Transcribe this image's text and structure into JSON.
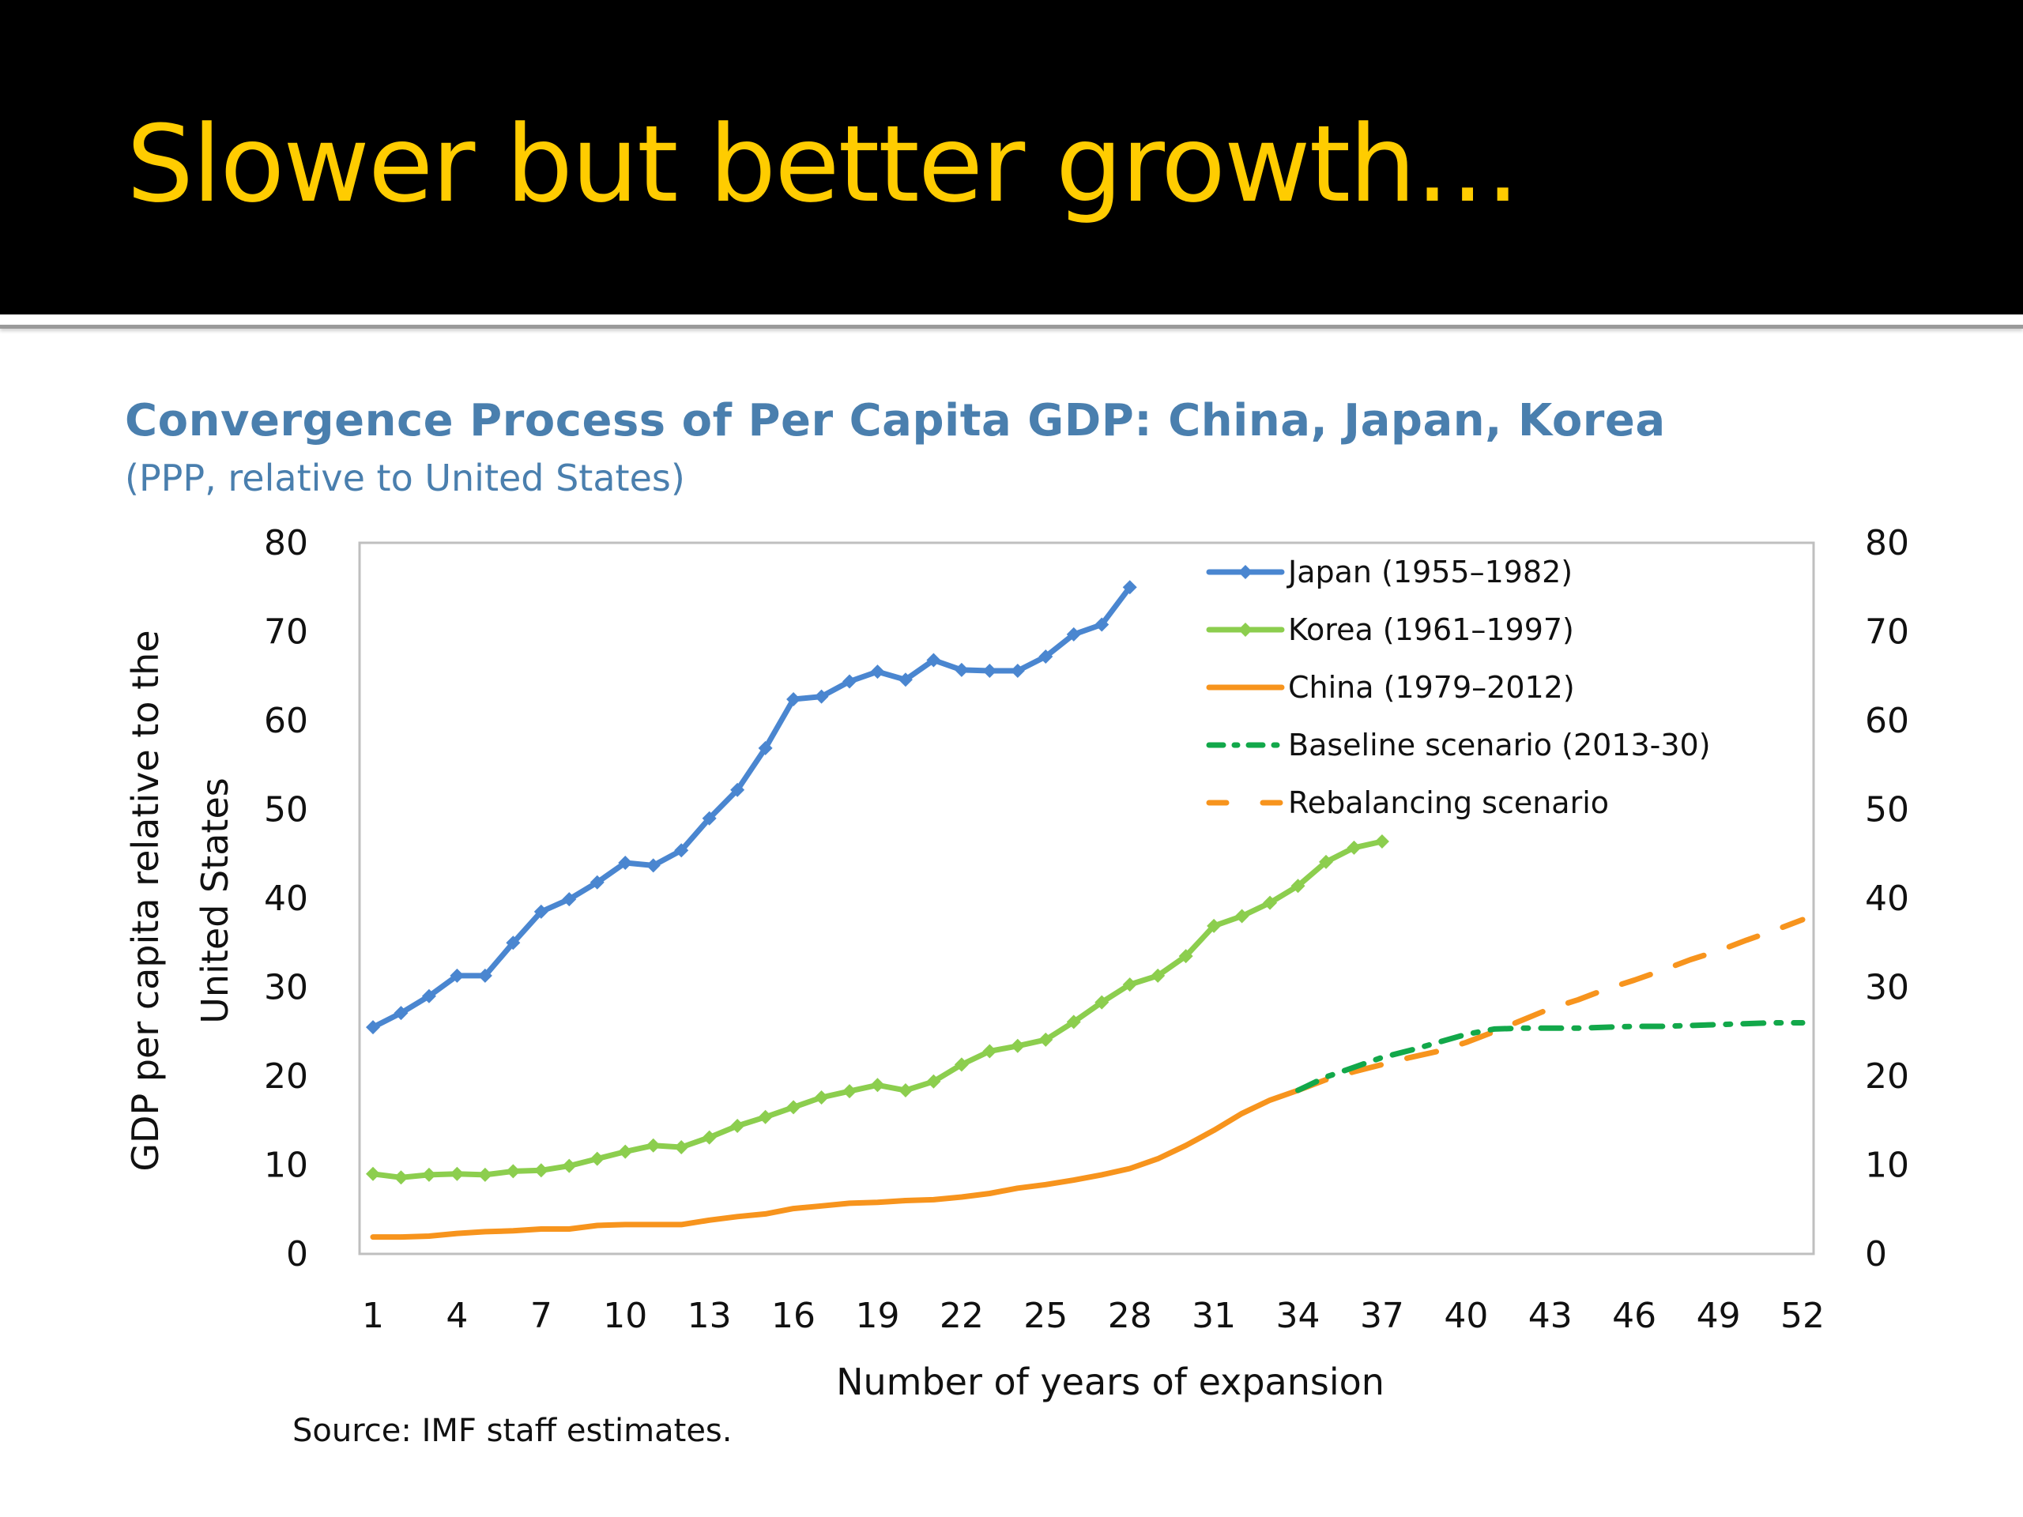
{
  "slide": {
    "title": "Slower but better growth…",
    "colors": {
      "header_bg": "#000000",
      "title": "#ffcc00",
      "chart_title": "#4a7fae"
    }
  },
  "chart_data": {
    "type": "line",
    "title": "Convergence Process of Per Capita GDP: China, Japan, Korea",
    "subtitle": "(PPP, relative to United States)",
    "xlabel": "Number of years of expansion",
    "ylabel_line1": "GDP per capita relative to the",
    "ylabel_line2": "United States",
    "source": "Source: IMF staff estimates.",
    "xlim": [
      1,
      52
    ],
    "ylim": [
      0,
      80
    ],
    "x_ticks": [
      1,
      4,
      7,
      10,
      13,
      16,
      19,
      22,
      25,
      28,
      31,
      34,
      37,
      40,
      43,
      46,
      49,
      52
    ],
    "y_ticks": [
      0,
      10,
      20,
      30,
      40,
      50,
      60,
      70,
      80
    ],
    "y_ticks_right": [
      0,
      10,
      20,
      30,
      40,
      50,
      60,
      70,
      80
    ],
    "grid": false,
    "legend_position": "top-right",
    "series": [
      {
        "name": "Japan (1955–1982)",
        "color": "#4a86d0",
        "style": "solid-marker",
        "x_start": 1,
        "values": [
          25.5,
          27.1,
          29.0,
          31.3,
          31.3,
          35.0,
          38.5,
          39.9,
          41.8,
          44.0,
          43.7,
          45.4,
          49.0,
          52.2,
          56.9,
          62.4,
          62.7,
          64.4,
          65.5,
          64.6,
          66.8,
          65.7,
          65.6,
          65.6,
          67.2,
          69.7,
          70.8,
          75.0
        ]
      },
      {
        "name": "Korea (1961–1997)",
        "color": "#8cce4e",
        "style": "solid-marker",
        "x_start": 1,
        "values": [
          9.0,
          8.6,
          8.9,
          9.0,
          8.9,
          9.3,
          9.4,
          9.9,
          10.7,
          11.5,
          12.2,
          12.0,
          13.1,
          14.4,
          15.4,
          16.5,
          17.6,
          18.3,
          19.0,
          18.4,
          19.4,
          21.3,
          22.8,
          23.4,
          24.1,
          26.1,
          28.3,
          30.3,
          31.3,
          33.5,
          36.9,
          38.0,
          39.5,
          41.4,
          44.1,
          45.7,
          46.4
        ]
      },
      {
        "name": "China (1979–2012)",
        "color": "#f7941d",
        "style": "solid",
        "x_start": 1,
        "values": [
          1.9,
          1.9,
          2.0,
          2.3,
          2.5,
          2.6,
          2.8,
          2.8,
          3.2,
          3.3,
          3.3,
          3.3,
          3.8,
          4.2,
          4.5,
          5.1,
          5.4,
          5.7,
          5.8,
          6.0,
          6.1,
          6.4,
          6.8,
          7.4,
          7.8,
          8.3,
          8.9,
          9.6,
          10.7,
          12.2,
          13.9,
          15.8,
          17.3,
          18.4
        ]
      },
      {
        "name": "Baseline scenario (2013-30)",
        "color": "#12a84a",
        "style": "dash-dot",
        "x_start": 35,
        "values": [
          19.9,
          21.0,
          22.1,
          22.9,
          23.8,
          24.7,
          25.3,
          25.4,
          25.4,
          25.4,
          25.5,
          25.6,
          25.6,
          25.7,
          25.8,
          25.9,
          26.0,
          26.0
        ]
      },
      {
        "name": "Rebalancing scenario",
        "color": "#f7941d",
        "style": "long-dash",
        "x_start": 35,
        "values": [
          19.6,
          20.5,
          21.3,
          22.1,
          22.8,
          23.8,
          25.0,
          26.3,
          27.6,
          28.6,
          29.8,
          30.8,
          31.9,
          33.1,
          34.1,
          35.3,
          36.4,
          37.6
        ]
      }
    ]
  }
}
